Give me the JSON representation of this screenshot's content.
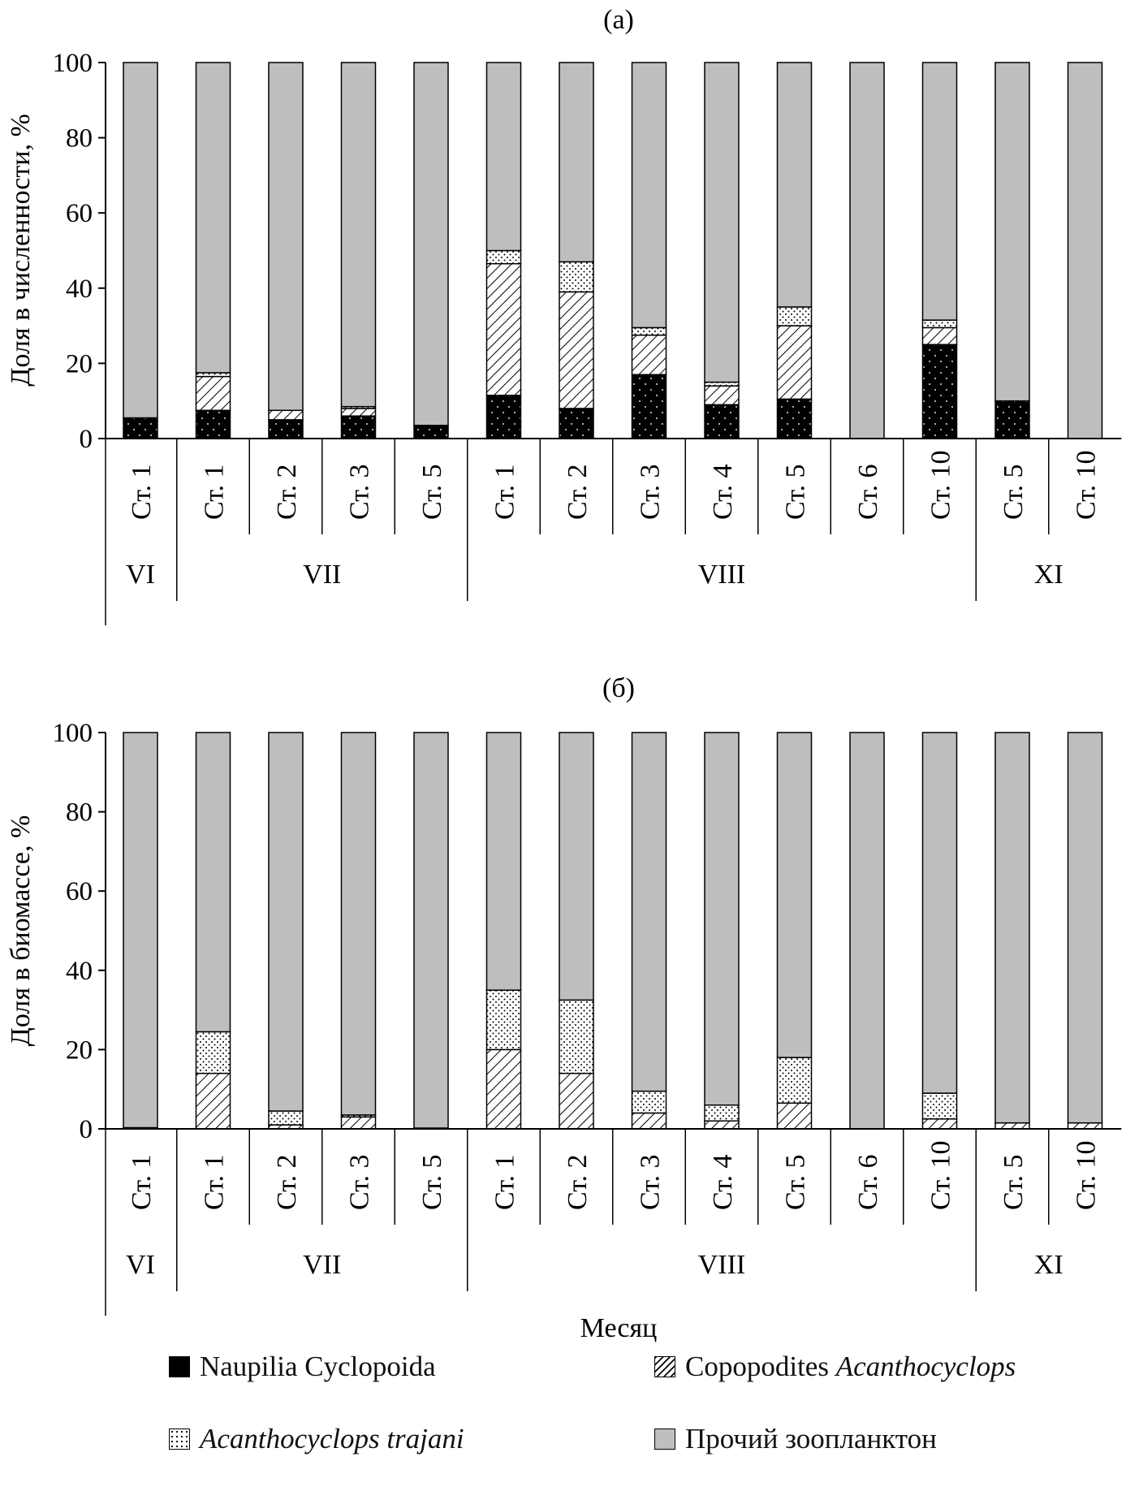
{
  "legend": {
    "naupilia": "Naupilia Cyclopoida",
    "copopodites_prefix": "Copopodites ",
    "copopodites_genus": "Acanthocyclops",
    "trajani": "Acanthocyclops trajani",
    "other": "Прочий зоопланктон"
  },
  "xlabel": "Месяц",
  "colors": {
    "other": "#bebebe",
    "naupilia": "#000000",
    "border": "#000000"
  },
  "chart_data": [
    {
      "type": "bar",
      "stacked": true,
      "title": "(а)",
      "ylabel": "Доля в численности, %",
      "ylim": [
        0,
        100
      ],
      "yticks": [
        0,
        20,
        40,
        60,
        80,
        100
      ],
      "categories": [
        "Ст. 1",
        "Ст. 1",
        "Ст. 2",
        "Ст. 3",
        "Ст. 5",
        "Ст. 1",
        "Ст. 2",
        "Ст. 3",
        "Ст. 4",
        "Ст. 5",
        "Ст. 6",
        "Ст. 10",
        "Ст. 5",
        "Ст. 10"
      ],
      "month_groups": [
        {
          "label": "VI",
          "count": 1
        },
        {
          "label": "VII",
          "count": 4
        },
        {
          "label": "VIII",
          "count": 7
        },
        {
          "label": "XI",
          "count": 2
        }
      ],
      "series": [
        {
          "name": "Naupilia Cyclopoida",
          "values": [
            5.5,
            7.5,
            5,
            6,
            3.5,
            11.5,
            8,
            17,
            9,
            10.5,
            0,
            25,
            10,
            0
          ]
        },
        {
          "name": "Copopodites Acanthocyclops",
          "values": [
            0,
            9,
            2.5,
            2,
            0,
            35,
            31,
            10.5,
            5,
            19.5,
            0,
            4.5,
            0,
            0
          ]
        },
        {
          "name": "Acanthocyclops trajani",
          "values": [
            0,
            1,
            0,
            0.5,
            0,
            3.5,
            8,
            2,
            1,
            5,
            0,
            2,
            0,
            0
          ]
        },
        {
          "name": "Прочий зоопланктон",
          "values": [
            94.5,
            82.5,
            92.5,
            91.5,
            96.5,
            50,
            53,
            70.5,
            85,
            65,
            100,
            68.5,
            90,
            100
          ]
        }
      ]
    },
    {
      "type": "bar",
      "stacked": true,
      "title": "(б)",
      "ylabel": "Доля в биомассе, %",
      "ylim": [
        0,
        100
      ],
      "yticks": [
        0,
        20,
        40,
        60,
        80,
        100
      ],
      "categories": [
        "Ст. 1",
        "Ст. 1",
        "Ст. 2",
        "Ст. 3",
        "Ст. 5",
        "Ст. 1",
        "Ст. 2",
        "Ст. 3",
        "Ст. 4",
        "Ст. 5",
        "Ст. 6",
        "Ст. 10",
        "Ст. 5",
        "Ст. 10"
      ],
      "month_groups": [
        {
          "label": "VI",
          "count": 1
        },
        {
          "label": "VII",
          "count": 4
        },
        {
          "label": "VIII",
          "count": 7
        },
        {
          "label": "XI",
          "count": 2
        }
      ],
      "series": [
        {
          "name": "Naupilia Cyclopoida",
          "values": [
            0.3,
            0,
            0,
            0,
            0.2,
            0,
            0,
            0,
            0,
            0,
            0,
            0,
            0,
            0
          ]
        },
        {
          "name": "Copopodites Acanthocyclops",
          "values": [
            0,
            14,
            1,
            3,
            0,
            20,
            14,
            4,
            2,
            6.5,
            0,
            2.5,
            1.5,
            1.5
          ]
        },
        {
          "name": "Acanthocyclops trajani",
          "values": [
            0,
            10.5,
            3.5,
            0.5,
            0,
            15,
            18.5,
            5.5,
            4,
            11.5,
            0,
            6.5,
            0,
            0
          ]
        },
        {
          "name": "Прочий зоопланктон",
          "values": [
            99.7,
            75.5,
            95.5,
            96.5,
            99.8,
            65,
            67.5,
            90.5,
            94,
            82,
            100,
            91,
            98.5,
            98.5
          ]
        }
      ]
    }
  ]
}
